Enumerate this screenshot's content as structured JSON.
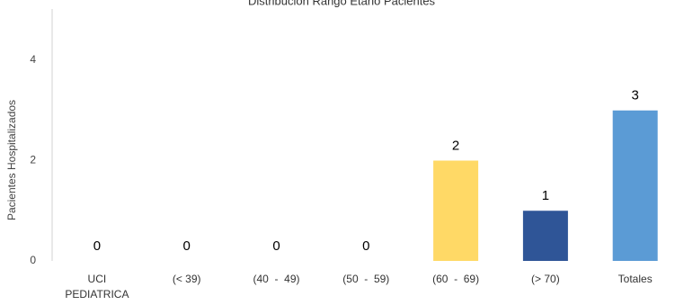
{
  "chart_data": {
    "type": "bar",
    "title": "Distribución Rango Etario Pacientes",
    "y_label": "Pacientes Hospitalizados",
    "categories": [
      "UCI PEDIATRICA",
      "(< 39)",
      "(40  -  49)",
      "(50  -  59)",
      "(60  -  69)",
      "(> 70)",
      "Totales"
    ],
    "values": [
      0,
      0,
      0,
      0,
      2,
      1,
      3
    ],
    "colors": [
      "#5B9BD5",
      "#5B9BD5",
      "#5B9BD5",
      "#5B9BD5",
      "#FFD966",
      "#2F5597",
      "#5B9BD5"
    ],
    "ylim": [
      0,
      5
    ],
    "yticks": [
      0,
      2,
      4
    ],
    "grid": false
  }
}
